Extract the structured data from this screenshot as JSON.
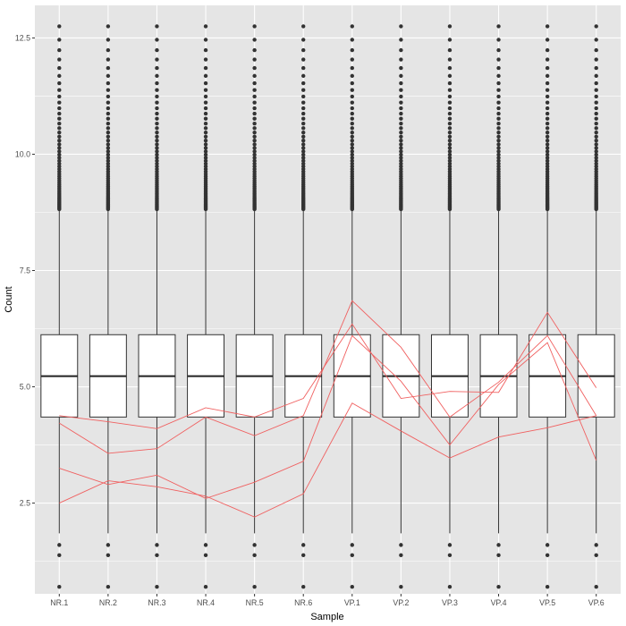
{
  "chart_data": {
    "type": "boxplot",
    "title": "",
    "xlabel": "Sample",
    "ylabel": "Count",
    "ylim": [
      0.55,
      13.2
    ],
    "yticks": [
      2.5,
      5.0,
      7.5,
      10.0,
      12.5
    ],
    "ytick_labels": [
      "2.5",
      "5.0",
      "7.5",
      "10.0",
      "12.5"
    ],
    "grid": true,
    "categories": [
      "NR.1",
      "NR.2",
      "NR.3",
      "NR.4",
      "NR.5",
      "NR.6",
      "VP.1",
      "VP.2",
      "VP.3",
      "VP.4",
      "VP.5",
      "VP.6"
    ],
    "box": {
      "whisker_low": 1.85,
      "q1": 4.35,
      "median": 5.23,
      "q3": 6.12,
      "whisker_high": 8.8,
      "outliers_low": [
        0.7,
        1.38,
        1.6
      ],
      "outliers_high_range": [
        8.8,
        12.75
      ]
    },
    "overlay_lines": [
      {
        "values": [
          4.38,
          4.25,
          4.1,
          4.55,
          4.35,
          4.75,
          6.35,
          4.75,
          4.9,
          4.88,
          6.6,
          4.98
        ]
      },
      {
        "values": [
          4.22,
          3.57,
          3.67,
          4.35,
          3.95,
          4.38,
          6.85,
          5.85,
          4.35,
          5.1,
          6.1,
          4.38
        ]
      },
      {
        "values": [
          3.25,
          2.9,
          3.1,
          2.6,
          2.95,
          3.4,
          6.1,
          5.12,
          3.75,
          5.05,
          5.95,
          3.42
        ]
      },
      {
        "values": [
          2.5,
          2.98,
          2.85,
          2.65,
          2.2,
          2.7,
          4.65,
          4.05,
          3.47,
          3.92,
          4.12,
          4.38
        ]
      }
    ],
    "colors": {
      "panel": "#e5e5e5",
      "grid_major": "#ffffff",
      "box_fill": "#ffffff",
      "box_stroke": "#333333",
      "overlay": "#f06060"
    }
  }
}
